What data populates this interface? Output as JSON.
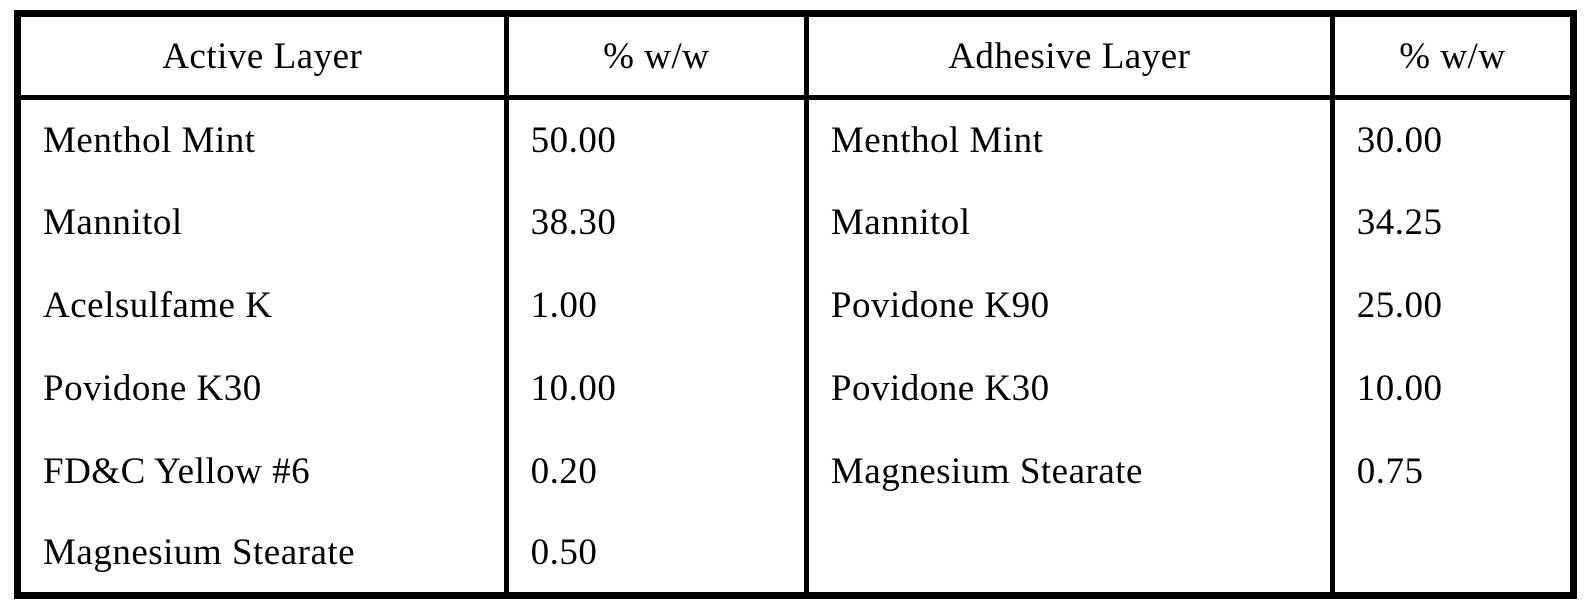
{
  "table": {
    "headers": {
      "active_layer": "Active Layer",
      "active_pct": "% w/w",
      "adhesive_layer": "Adhesive Layer",
      "adhesive_pct": "% w/w"
    },
    "rows": [
      {
        "active_name": "Menthol Mint",
        "active_pct": "50.00",
        "adhesive_name": "Menthol Mint",
        "adhesive_pct": "30.00"
      },
      {
        "active_name": "Mannitol",
        "active_pct": "38.30",
        "adhesive_name": "Mannitol",
        "adhesive_pct": "34.25"
      },
      {
        "active_name": "Acelsulfame K",
        "active_pct": "1.00",
        "adhesive_name": "Povidone K90",
        "adhesive_pct": "25.00"
      },
      {
        "active_name": "Povidone K30",
        "active_pct": "10.00",
        "adhesive_name": "Povidone K30",
        "adhesive_pct": "10.00"
      },
      {
        "active_name": "FD&C Yellow #6",
        "active_pct": "0.20",
        "adhesive_name": "Magnesium Stearate",
        "adhesive_pct": "0.75"
      },
      {
        "active_name": "Magnesium Stearate",
        "active_pct": "0.50",
        "adhesive_name": "",
        "adhesive_pct": ""
      }
    ],
    "colors": {
      "border": "#000000",
      "background": "#ffffff",
      "text": "#000000"
    }
  }
}
